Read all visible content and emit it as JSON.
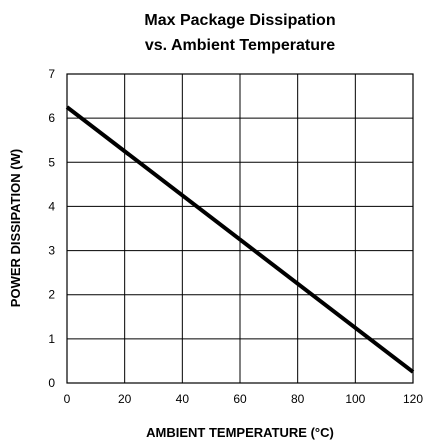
{
  "chart_data": {
    "type": "line",
    "title_line1": "Max Package Dissipation",
    "title_line2": "vs. Ambient Temperature",
    "xlabel": "AMBIENT TEMPERATURE (°C)",
    "ylabel": "POWER DISSIPATION (W)",
    "xlim": [
      0,
      120
    ],
    "ylim": [
      0,
      7
    ],
    "x_ticks": [
      "0",
      "20",
      "40",
      "60",
      "80",
      "100",
      "120"
    ],
    "y_ticks": [
      "0",
      "1",
      "2",
      "3",
      "4",
      "5",
      "6",
      "7"
    ],
    "grid": true,
    "series": [
      {
        "x": [
          0,
          120
        ],
        "y": [
          6.25,
          0.25
        ]
      }
    ]
  }
}
